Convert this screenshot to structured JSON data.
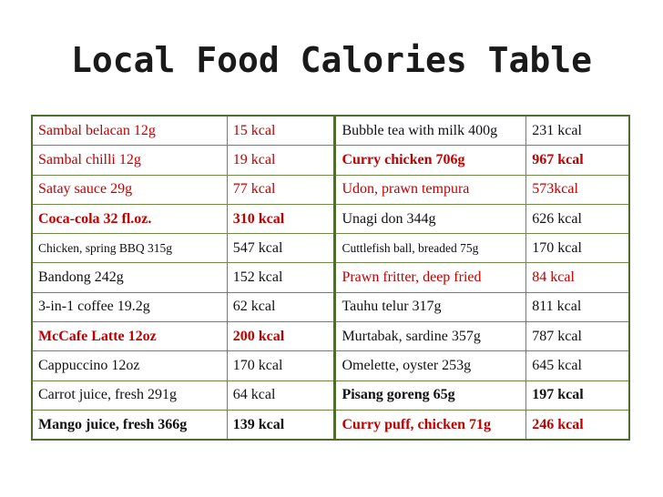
{
  "title": "Local Food Calories Table",
  "rows": [
    {
      "l": {
        "item": "Sambal belacan 12g",
        "kcal": "15 kcal",
        "style": "red"
      },
      "r": {
        "item": "Bubble tea with milk 400g",
        "kcal": "231 kcal",
        "style": "normal"
      }
    },
    {
      "l": {
        "item": "Sambal chilli 12g",
        "kcal": "19 kcal",
        "style": "red"
      },
      "r": {
        "item": "Curry chicken 706g",
        "kcal": "967 kcal",
        "style": "red-bold"
      }
    },
    {
      "l": {
        "item": "Satay sauce 29g",
        "kcal": "77 kcal",
        "style": "red"
      },
      "r": {
        "item": "Udon, prawn tempura",
        "kcal": "573kcal",
        "style": "red"
      }
    },
    {
      "l": {
        "item": "Coca-cola 32 fl.oz.",
        "kcal": "310 kcal",
        "style": "red-bold"
      },
      "r": {
        "item": "Unagi don 344g",
        "kcal": "626 kcal",
        "style": "normal"
      }
    },
    {
      "l": {
        "item": "Chicken, spring BBQ 315g",
        "kcal": "547 kcal",
        "style": "small"
      },
      "r": {
        "item": "Cuttlefish ball, breaded 75g",
        "kcal": "170 kcal",
        "style": "small"
      }
    },
    {
      "l": {
        "item": "Bandong 242g",
        "kcal": "152 kcal",
        "style": "normal"
      },
      "r": {
        "item": "Prawn fritter, deep fried",
        "kcal": "84 kcal",
        "style": "red"
      }
    },
    {
      "l": {
        "item": "3-in-1 coffee 19.2g",
        "kcal": "62 kcal",
        "style": "normal"
      },
      "r": {
        "item": "Tauhu telur 317g",
        "kcal": "811 kcal",
        "style": "normal"
      }
    },
    {
      "l": {
        "item": "McCafe Latte 12oz",
        "kcal": "200 kcal",
        "style": "red-bold"
      },
      "r": {
        "item": "Murtabak, sardine 357g",
        "kcal": "787 kcal",
        "style": "normal"
      }
    },
    {
      "l": {
        "item": "Cappuccino 12oz",
        "kcal": "170 kcal",
        "style": "normal"
      },
      "r": {
        "item": "Omelette, oyster 253g",
        "kcal": "645 kcal",
        "style": "normal"
      }
    },
    {
      "l": {
        "item": "Carrot juice, fresh 291g",
        "kcal": "64 kcal",
        "style": "normal"
      },
      "r": {
        "item": "Pisang goreng 65g",
        "kcal": "197 kcal",
        "style": "bold"
      }
    },
    {
      "l": {
        "item": "Mango juice, fresh 366g",
        "kcal": "139 kcal",
        "style": "bold"
      },
      "r": {
        "item": "Curry puff, chicken 71g",
        "kcal": "246 kcal",
        "style": "red-bold"
      }
    }
  ]
}
